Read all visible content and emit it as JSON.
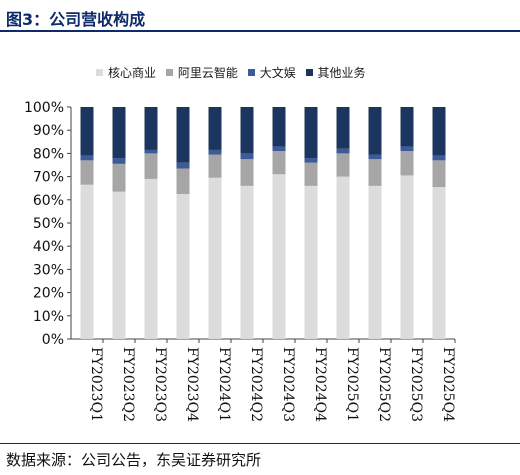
{
  "figure": {
    "title": "图3：公司营收构成",
    "source": "数据来源：公司公告，东吴证券研究所"
  },
  "chart_data": {
    "type": "bar",
    "stacked": true,
    "percent": true,
    "categories": [
      "FY2023Q1",
      "FY2023Q2",
      "FY2023Q3",
      "FY2023Q4",
      "FY2024Q1",
      "FY2024Q2",
      "FY2024Q3",
      "FY2024Q4",
      "FY2025Q1",
      "FY2025Q2",
      "FY2025Q3",
      "FY2025Q4"
    ],
    "series": [
      {
        "name": "核心商业",
        "color": "#dcdcdc",
        "values": [
          66.5,
          63.5,
          69,
          62.5,
          69.5,
          66,
          71,
          66,
          70,
          66,
          70.5,
          65.5
        ]
      },
      {
        "name": "阿里云智能",
        "color": "#a6a6a6",
        "values": [
          10.5,
          12,
          11,
          11,
          10,
          11.5,
          10,
          10,
          10,
          11.5,
          10.5,
          11.5
        ]
      },
      {
        "name": "大文娱",
        "color": "#3d5a99",
        "values": [
          2,
          2.5,
          1.5,
          2.5,
          2,
          2.5,
          2,
          2,
          2,
          2,
          2,
          2
        ]
      },
      {
        "name": "其他业务",
        "color": "#1b355f",
        "values": [
          21,
          22,
          18.5,
          24,
          18.5,
          20,
          17,
          22,
          18,
          20.5,
          17,
          21
        ]
      }
    ],
    "ylim": [
      0,
      100
    ],
    "yticks": [
      "0%",
      "10%",
      "20%",
      "30%",
      "40%",
      "50%",
      "60%",
      "70%",
      "80%",
      "90%",
      "100%"
    ],
    "legend_position": "top"
  }
}
